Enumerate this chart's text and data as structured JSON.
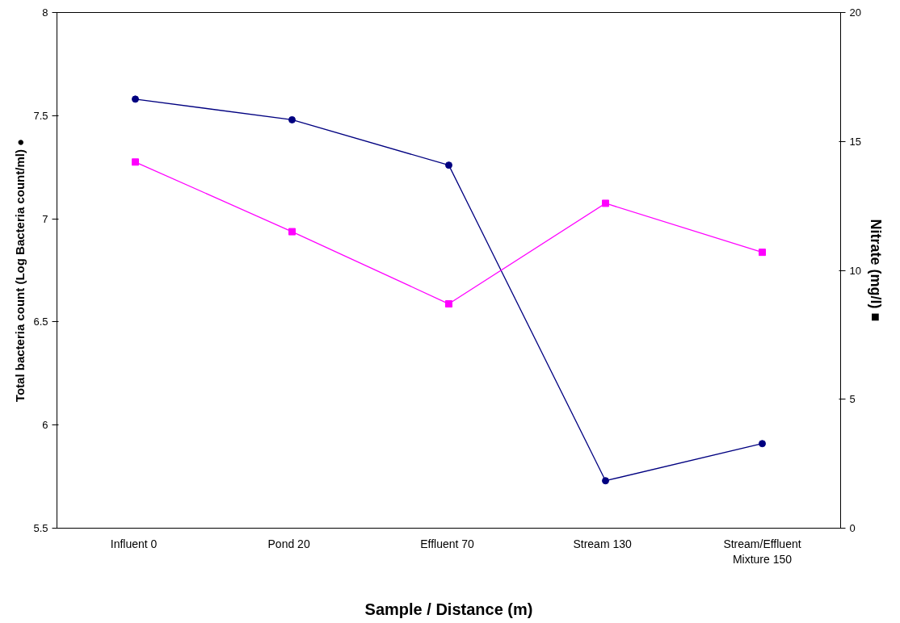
{
  "chart_data": {
    "type": "line",
    "xlabel": "Sample / Distance (m)",
    "ylabel": "Total bacteria count (Log Bacteria count/ml) ●",
    "y2label": "Nitrate (mg/l) ■",
    "categories": [
      "Influent  0",
      "Pond   20",
      "Effluent  70",
      "Stream   130",
      "Stream/Effluent Mixture 150"
    ],
    "series": [
      {
        "color": "#000080",
        "marker": "circle",
        "values": [
          7.58,
          7.48,
          7.26,
          5.73,
          5.91
        ]
      },
      {
        "color": "#ff00ff",
        "marker": "square",
        "axis": "y2",
        "values": [
          14.2,
          11.5,
          8.7,
          12.6,
          10.7
        ]
      }
    ],
    "ylim": [
      5.5,
      8
    ],
    "yticks": [
      5.5,
      6,
      6.5,
      7,
      7.5,
      8
    ],
    "y2lim": [
      0,
      20
    ],
    "y2ticks": [
      0,
      5,
      10,
      15,
      20
    ],
    "grid": false
  }
}
